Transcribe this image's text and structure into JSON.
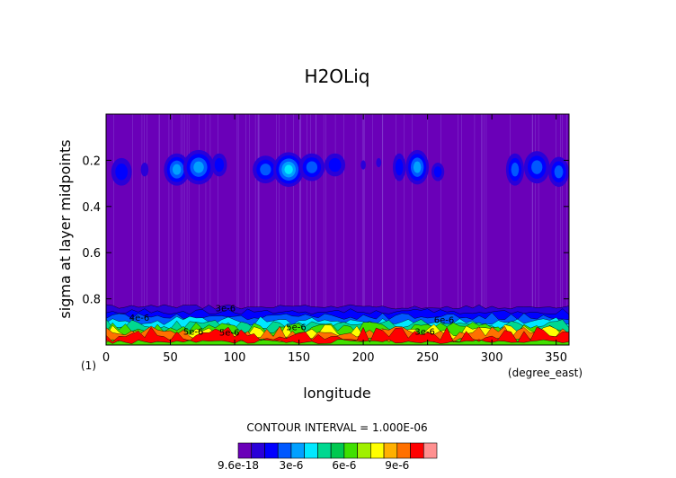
{
  "chart_data": {
    "type": "heatmap",
    "title": "H2OLiq",
    "xlabel": "longitude",
    "ylabel": "sigma at layer midpoints",
    "x_unit": "(degree_east)",
    "y_unit": "(1)",
    "xlim": [
      0,
      360
    ],
    "ylim": [
      0.0,
      1.0
    ],
    "y_inverted": true,
    "x_ticks": [
      0,
      50,
      100,
      150,
      200,
      250,
      300,
      350
    ],
    "y_ticks": [
      0.2,
      0.4,
      0.6,
      0.8
    ],
    "y_tick_labels": [
      "0.2",
      "0.4",
      "0.6",
      "0.8"
    ],
    "grid": false,
    "contour_interval_text": "CONTOUR INTERVAL = 1.000E-06",
    "colorbar": {
      "levels": [
        9.6e-18,
        1e-06,
        2e-06,
        3e-06,
        4e-06,
        5e-06,
        6e-06,
        7e-06,
        8e-06,
        9e-06,
        1e-05
      ],
      "colors": [
        "#6a00b8",
        "#2a00d8",
        "#0000ff",
        "#0058ff",
        "#00a0ff",
        "#00e8ff",
        "#00d890",
        "#00c850",
        "#40e000",
        "#a0f000",
        "#ffff00",
        "#ffb000",
        "#ff7000",
        "#ff0000",
        "#ff9090"
      ],
      "tick_labels": [
        "9.6e-18",
        "3e-6",
        "6e-6",
        "9e-6"
      ]
    },
    "contour_labels": [
      "4e-6",
      "3e-6",
      "5e-6",
      "5e-6",
      "3e-6",
      "6e-6",
      "5e-6"
    ],
    "features": {
      "upper_cloud_band_sigma": [
        0.16,
        0.33
      ],
      "lower_cloud_band_sigma": [
        0.83,
        1.0
      ],
      "max_value_approx": 1e-05
    }
  }
}
